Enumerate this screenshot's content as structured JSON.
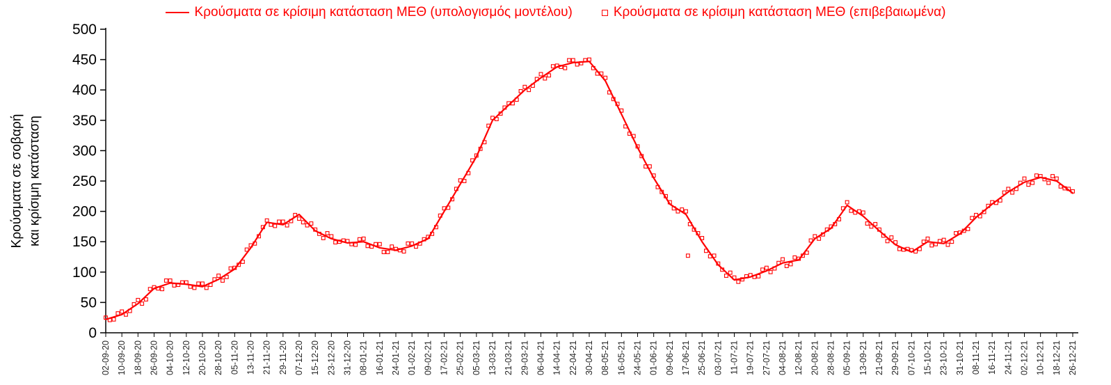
{
  "chart_data": {
    "type": "line",
    "title": "",
    "grid": false,
    "legend_position": "top",
    "colors": {
      "series": "#FF0000",
      "axis": "#000000",
      "tick_text": "#262626"
    },
    "legend": [
      {
        "label": "Κρούσματα σε κρίσιμη κατάσταση ΜΕΘ (υπολογισμός μοντέλου)",
        "marker": "line"
      },
      {
        "label": "Κρούσματα σε κρίσιμη κατάσταση ΜΕΘ (επιβεβαιωμένα)",
        "marker": "open-square"
      }
    ],
    "ylabel_lines": [
      "Κρούσματα σε σοβαρή",
      "και κρίσιμη κατάσταση"
    ],
    "y_range": [
      0,
      500
    ],
    "y_ticks": [
      0,
      50,
      100,
      150,
      200,
      250,
      300,
      350,
      400,
      450,
      500
    ],
    "x_range": [
      0,
      480
    ],
    "x_tick_step": 8,
    "x_tick_labels": [
      "02-09-20",
      "10-09-20",
      "18-09-20",
      "26-09-20",
      "04-10-20",
      "12-10-20",
      "20-10-20",
      "28-10-20",
      "05-11-20",
      "13-11-20",
      "21-11-20",
      "29-11-20",
      "07-12-20",
      "15-12-20",
      "23-12-20",
      "31-12-20",
      "08-01-21",
      "16-01-21",
      "24-01-21",
      "01-02-21",
      "09-02-21",
      "17-02-21",
      "25-02-21",
      "05-03-21",
      "13-03-21",
      "21-03-21",
      "29-03-21",
      "06-04-21",
      "14-04-21",
      "22-04-21",
      "30-04-21",
      "08-05-21",
      "16-05-21",
      "24-05-21",
      "01-06-21",
      "09-06-21",
      "17-06-21",
      "25-06-21",
      "03-07-21",
      "11-07-21",
      "19-07-21",
      "27-07-21",
      "04-08-21",
      "12-08-21",
      "20-08-21",
      "28-08-21",
      "05-09-21",
      "13-09-21",
      "21-09-21",
      "29-09-21",
      "07-10-21",
      "15-10-21",
      "23-10-21",
      "31-10-21",
      "08-11-21",
      "16-11-21",
      "24-11-21",
      "02-12-21",
      "10-12-21",
      "18-12-21",
      "26-12-21"
    ],
    "series": [
      {
        "name": "Κρούσματα σε κρίσιμη κατάσταση ΜΕΘ (υπολογισμός μοντέλου)",
        "kind": "line",
        "color": "#FF0000",
        "x_start": 0,
        "x_step": 8,
        "values": [
          22,
          30,
          48,
          73,
          82,
          80,
          76,
          88,
          105,
          140,
          182,
          178,
          195,
          168,
          155,
          148,
          150,
          140,
          136,
          143,
          155,
          200,
          245,
          290,
          350,
          375,
          400,
          420,
          438,
          445,
          447,
          415,
          360,
          305,
          255,
          212,
          195,
          150,
          112,
          87,
          92,
          102,
          115,
          120,
          155,
          172,
          210,
          192,
          168,
          145,
          133,
          150,
          147,
          163,
          190,
          212,
          232,
          248,
          256,
          250,
          230
        ]
      },
      {
        "name": "Κρούσματα σε κρίσιμη κατάσταση ΜΕΘ (επιβεβαιωμένα)",
        "kind": "scatter",
        "color": "#FF0000",
        "points": [
          [
            0,
            25
          ],
          [
            4,
            22
          ],
          [
            8,
            35
          ],
          [
            12,
            36
          ],
          [
            16,
            54
          ],
          [
            20,
            55
          ],
          [
            24,
            75
          ],
          [
            28,
            72
          ],
          [
            32,
            86
          ],
          [
            36,
            79
          ],
          [
            40,
            83
          ],
          [
            44,
            74
          ],
          [
            48,
            81
          ],
          [
            52,
            79
          ],
          [
            56,
            94
          ],
          [
            60,
            92
          ],
          [
            64,
            107
          ],
          [
            68,
            117
          ],
          [
            72,
            144
          ],
          [
            76,
            159
          ],
          [
            80,
            185
          ],
          [
            84,
            176
          ],
          [
            88,
            183
          ],
          [
            92,
            184
          ],
          [
            96,
            188
          ],
          [
            100,
            177
          ],
          [
            104,
            170
          ],
          [
            108,
            156
          ],
          [
            112,
            159
          ],
          [
            116,
            150
          ],
          [
            120,
            151
          ],
          [
            124,
            145
          ],
          [
            128,
            155
          ],
          [
            132,
            142
          ],
          [
            136,
            146
          ],
          [
            140,
            133
          ],
          [
            144,
            138
          ],
          [
            148,
            134
          ],
          [
            152,
            147
          ],
          [
            156,
            147
          ],
          [
            160,
            158
          ],
          [
            164,
            174
          ],
          [
            168,
            205
          ],
          [
            172,
            220
          ],
          [
            176,
            251
          ],
          [
            180,
            263
          ],
          [
            184,
            292
          ],
          [
            188,
            314
          ],
          [
            192,
            354
          ],
          [
            196,
            361
          ],
          [
            200,
            378
          ],
          [
            204,
            384
          ],
          [
            208,
            405
          ],
          [
            212,
            407
          ],
          [
            216,
            426
          ],
          [
            220,
            424
          ],
          [
            224,
            440
          ],
          [
            228,
            436
          ],
          [
            232,
            449
          ],
          [
            236,
            444
          ],
          [
            240,
            450
          ],
          [
            244,
            427
          ],
          [
            248,
            420
          ],
          [
            252,
            385
          ],
          [
            256,
            366
          ],
          [
            260,
            328
          ],
          [
            264,
            307
          ],
          [
            268,
            274
          ],
          [
            272,
            259
          ],
          [
            276,
            232
          ],
          [
            280,
            215
          ],
          [
            284,
            200
          ],
          [
            288,
            200
          ],
          [
            292,
            170
          ],
          [
            296,
            156
          ],
          [
            300,
            126
          ],
          [
            304,
            114
          ],
          [
            308,
            94
          ],
          [
            312,
            91
          ],
          [
            316,
            88
          ],
          [
            320,
            95
          ],
          [
            324,
            93
          ],
          [
            328,
            107
          ],
          [
            332,
            106
          ],
          [
            336,
            121
          ],
          [
            340,
            113
          ],
          [
            344,
            122
          ],
          [
            348,
            132
          ],
          [
            352,
            159
          ],
          [
            356,
            162
          ],
          [
            360,
            175
          ],
          [
            364,
            187
          ],
          [
            368,
            215
          ],
          [
            372,
            198
          ],
          [
            376,
            198
          ],
          [
            380,
            175
          ],
          [
            384,
            170
          ],
          [
            388,
            151
          ],
          [
            392,
            149
          ],
          [
            396,
            137
          ],
          [
            400,
            136
          ],
          [
            404,
            138
          ],
          [
            408,
            155
          ],
          [
            412,
            146
          ],
          [
            416,
            153
          ],
          [
            420,
            150
          ],
          [
            424,
            165
          ],
          [
            428,
            171
          ],
          [
            432,
            194
          ],
          [
            436,
            199
          ],
          [
            440,
            215
          ],
          [
            444,
            218
          ],
          [
            448,
            237
          ],
          [
            452,
            237
          ],
          [
            456,
            254
          ],
          [
            460,
            247
          ],
          [
            464,
            258
          ],
          [
            468,
            247
          ],
          [
            472,
            254
          ],
          [
            476,
            238
          ],
          [
            480,
            233
          ],
          [
            2,
            21
          ],
          [
            6,
            32
          ],
          [
            10,
            30
          ],
          [
            14,
            47
          ],
          [
            18,
            48
          ],
          [
            22,
            72
          ],
          [
            26,
            73
          ],
          [
            30,
            86
          ],
          [
            34,
            78
          ],
          [
            38,
            83
          ],
          [
            42,
            76
          ],
          [
            46,
            81
          ],
          [
            50,
            74
          ],
          [
            54,
            88
          ],
          [
            58,
            86
          ],
          [
            62,
            106
          ],
          [
            66,
            112
          ],
          [
            70,
            137
          ],
          [
            74,
            147
          ],
          [
            78,
            174
          ],
          [
            82,
            178
          ],
          [
            86,
            183
          ],
          [
            90,
            177
          ],
          [
            94,
            194
          ],
          [
            98,
            182
          ],
          [
            102,
            180
          ],
          [
            106,
            163
          ],
          [
            110,
            164
          ],
          [
            114,
            149
          ],
          [
            118,
            152
          ],
          [
            122,
            146
          ],
          [
            126,
            154
          ],
          [
            130,
            143
          ],
          [
            134,
            146
          ],
          [
            138,
            133
          ],
          [
            142,
            142
          ],
          [
            146,
            136
          ],
          [
            150,
            147
          ],
          [
            154,
            142
          ],
          [
            158,
            154
          ],
          [
            162,
            163
          ],
          [
            166,
            193
          ],
          [
            170,
            206
          ],
          [
            174,
            237
          ],
          [
            178,
            250
          ],
          [
            182,
            284
          ],
          [
            186,
            303
          ],
          [
            190,
            341
          ],
          [
            194,
            352
          ],
          [
            198,
            371
          ],
          [
            202,
            378
          ],
          [
            206,
            398
          ],
          [
            210,
            400
          ],
          [
            214,
            418
          ],
          [
            218,
            419
          ],
          [
            222,
            439
          ],
          [
            226,
            438
          ],
          [
            230,
            449
          ],
          [
            234,
            442
          ],
          [
            238,
            449
          ],
          [
            242,
            436
          ],
          [
            246,
            427
          ],
          [
            250,
            396
          ],
          [
            254,
            377
          ],
          [
            258,
            340
          ],
          [
            262,
            324
          ],
          [
            266,
            291
          ],
          [
            270,
            274
          ],
          [
            274,
            240
          ],
          [
            278,
            225
          ],
          [
            282,
            205
          ],
          [
            286,
            203
          ],
          [
            290,
            179
          ],
          [
            294,
            164
          ],
          [
            298,
            135
          ],
          [
            302,
            127
          ],
          [
            306,
            104
          ],
          [
            310,
            99
          ],
          [
            314,
            84
          ],
          [
            318,
            93
          ],
          [
            322,
            92
          ],
          [
            326,
            104
          ],
          [
            330,
            100
          ],
          [
            334,
            115
          ],
          [
            338,
            110
          ],
          [
            342,
            124
          ],
          [
            346,
            127
          ],
          [
            350,
            152
          ],
          [
            354,
            155
          ],
          [
            358,
            170
          ],
          [
            362,
            179
          ],
          [
            366,
            205
          ],
          [
            370,
            201
          ],
          [
            374,
            200
          ],
          [
            378,
            180
          ],
          [
            382,
            179
          ],
          [
            386,
            160
          ],
          [
            390,
            157
          ],
          [
            394,
            138
          ],
          [
            398,
            138
          ],
          [
            402,
            134
          ],
          [
            406,
            150
          ],
          [
            410,
            144
          ],
          [
            414,
            151
          ],
          [
            418,
            145
          ],
          [
            422,
            164
          ],
          [
            426,
            168
          ],
          [
            430,
            189
          ],
          [
            434,
            192
          ],
          [
            438,
            209
          ],
          [
            442,
            214
          ],
          [
            446,
            231
          ],
          [
            450,
            231
          ],
          [
            454,
            247
          ],
          [
            458,
            244
          ],
          [
            462,
            259
          ],
          [
            466,
            253
          ],
          [
            470,
            258
          ],
          [
            474,
            241
          ],
          [
            478,
            237
          ],
          [
            289,
            127
          ]
        ]
      }
    ]
  }
}
